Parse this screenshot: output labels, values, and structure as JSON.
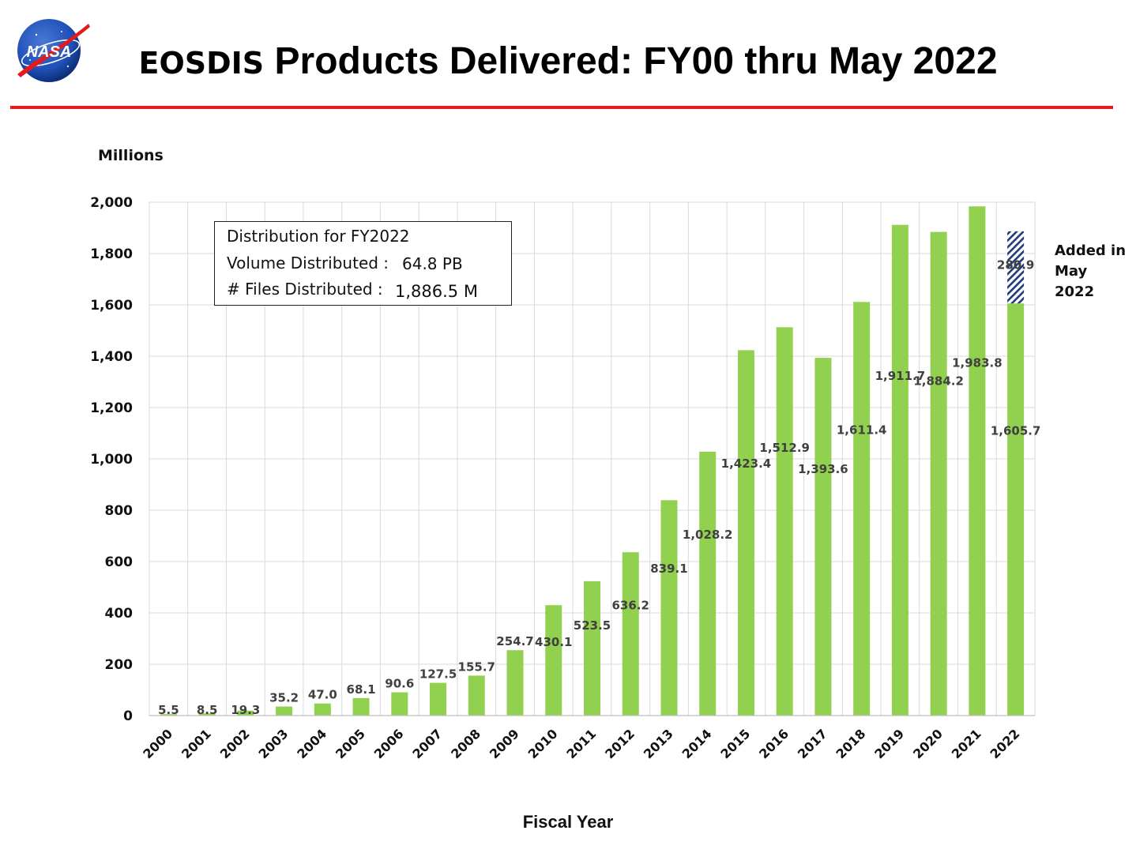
{
  "header": {
    "title_part1": "EOSDIS",
    "title_part2": " Products Delivered: FY00 thru May 2022",
    "logo_text": "NASA"
  },
  "colors": {
    "bar": "#92d050",
    "accent_line": "#e8191a",
    "hatch": "#1f3b7a"
  },
  "distribution_box": {
    "heading": "Distribution for FY2022",
    "volume_label": "Volume Distributed :",
    "volume_value": "64.8 PB",
    "files_label": "# Files Distributed :",
    "files_value": "1,886.5 M"
  },
  "side_note": {
    "line1": "Added in",
    "line2": "May",
    "line3": "2022"
  },
  "chart_data": {
    "type": "bar",
    "title": "EOSDIS Products Delivered: FY00 thru May 2022",
    "xlabel": "Fiscal Year",
    "ylabel": "Millions",
    "ylim": [
      0,
      2000
    ],
    "yticks": [
      0,
      200,
      400,
      600,
      800,
      1000,
      1200,
      1400,
      1600,
      1800,
      2000
    ],
    "ytick_labels": [
      "0",
      "200",
      "400",
      "600",
      "800",
      "1,000",
      "1,200",
      "1,400",
      "1,600",
      "1,800",
      "2,000"
    ],
    "grid": true,
    "categories": [
      "2000",
      "2001",
      "2002",
      "2003",
      "2004",
      "2005",
      "2006",
      "2007",
      "2008",
      "2009",
      "2010",
      "2011",
      "2012",
      "2013",
      "2014",
      "2015",
      "2016",
      "2017",
      "2018",
      "2019",
      "2020",
      "2021",
      "2022"
    ],
    "values": [
      5.5,
      8.5,
      19.3,
      35.2,
      47.0,
      68.1,
      90.6,
      127.5,
      155.7,
      254.7,
      430.1,
      523.5,
      636.2,
      839.1,
      1028.2,
      1423.4,
      1512.9,
      1393.6,
      1611.4,
      1911.7,
      1884.2,
      1983.8,
      1605.7
    ],
    "labels": [
      "5.5",
      "8.5",
      "19.3",
      "35.2",
      "47.0",
      "68.1",
      "90.6",
      "127.5",
      "155.7",
      "254.7",
      "430.1",
      "523.5",
      "636.2",
      "839.1",
      "1,028.2",
      "1,423.4",
      "1,512.9",
      "1,393.6",
      "1,611.4",
      "1,911.7",
      "1,884.2",
      "1,983.8",
      "1,605.7"
    ],
    "stacked_addition": {
      "category": "2022",
      "value": 280.9,
      "label": "280.9",
      "pattern": "hatched"
    }
  }
}
